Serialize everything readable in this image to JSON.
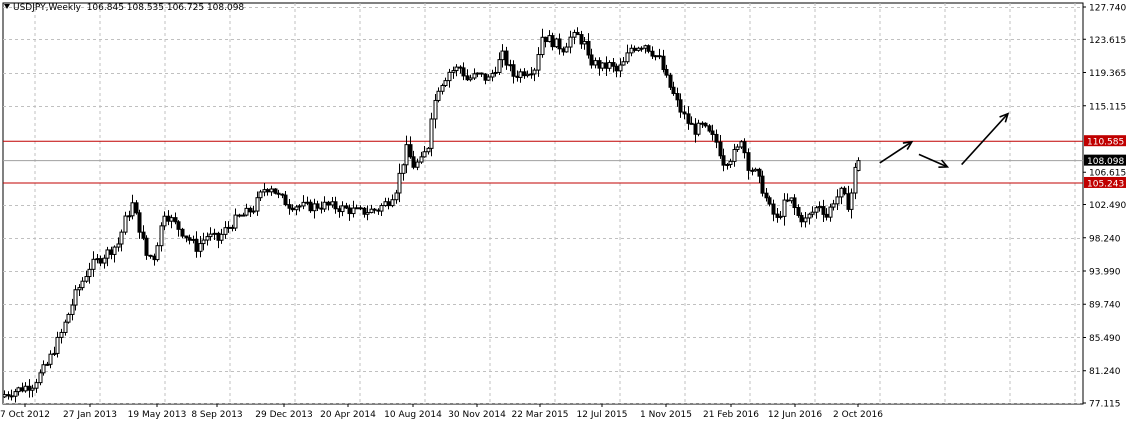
{
  "header": {
    "symbol": "USDJPY,Weekly",
    "ohlc": "106.845 108.535 106.725 108.098"
  },
  "chart_data": {
    "type": "candlestick",
    "title": "USDJPY,Weekly",
    "ylim": [
      77.115,
      127.74
    ],
    "y_ticks": [
      "127.740",
      "123.615",
      "119.365",
      "115.115",
      "110.585",
      "108.098",
      "106.615",
      "105.243",
      "102.490",
      "98.240",
      "93.990",
      "89.740",
      "85.490",
      "81.240",
      "77.115"
    ],
    "x_ticks": [
      "7 Oct 2012",
      "27 Jan 2013",
      "19 May 2013",
      "8 Sep 2013",
      "29 Dec 2013",
      "20 Apr 2014",
      "10 Aug 2014",
      "30 Nov 2014",
      "22 Mar 2015",
      "12 Jul 2015",
      "1 Nov 2015",
      "21 Feb 2016",
      "12 Jun 2016",
      "2 Oct 2016"
    ],
    "grid": true,
    "current_price": 108.098,
    "resistance_level": 110.585,
    "support_level": 105.243,
    "anchors": [
      [
        0,
        78.2
      ],
      [
        8,
        79.5
      ],
      [
        12,
        82.0
      ],
      [
        16,
        86.0
      ],
      [
        20,
        91.0
      ],
      [
        24,
        94.5
      ],
      [
        28,
        96.0
      ],
      [
        32,
        97.5
      ],
      [
        34,
        100.5
      ],
      [
        36,
        102.5
      ],
      [
        38,
        99.5
      ],
      [
        40,
        96.0
      ],
      [
        42,
        95.8
      ],
      [
        45,
        101.5
      ],
      [
        48,
        100.0
      ],
      [
        51,
        98.5
      ],
      [
        54,
        97.0
      ],
      [
        57,
        98.5
      ],
      [
        60,
        98.0
      ],
      [
        62,
        99.2
      ],
      [
        65,
        100.5
      ],
      [
        70,
        102.0
      ],
      [
        73,
        104.5
      ],
      [
        75,
        104.8
      ],
      [
        77,
        103.5
      ],
      [
        80,
        102.5
      ],
      [
        85,
        102.2
      ],
      [
        90,
        102.4
      ],
      [
        95,
        102.0
      ],
      [
        100,
        101.5
      ],
      [
        105,
        101.9
      ],
      [
        108,
        103.0
      ],
      [
        110,
        104.5
      ],
      [
        112,
        108.0
      ],
      [
        113,
        109.5
      ],
      [
        115,
        107.5
      ],
      [
        117,
        108.0
      ],
      [
        119,
        110.0
      ],
      [
        120,
        114.0
      ],
      [
        122,
        117.5
      ],
      [
        125,
        119.5
      ],
      [
        128,
        120.0
      ],
      [
        130,
        118.5
      ],
      [
        133,
        119.0
      ],
      [
        136,
        118.5
      ],
      [
        138,
        120.0
      ],
      [
        140,
        121.5
      ],
      [
        143,
        119.0
      ],
      [
        146,
        119.5
      ],
      [
        149,
        120.0
      ],
      [
        150,
        122.0
      ],
      [
        151,
        124.0
      ],
      [
        153,
        123.6
      ],
      [
        155,
        123.0
      ],
      [
        157,
        122.5
      ],
      [
        159,
        123.8
      ],
      [
        161,
        124.0
      ],
      [
        163,
        123.0
      ],
      [
        164,
        121.0
      ],
      [
        166,
        120.5
      ],
      [
        168,
        120.0
      ],
      [
        170,
        120.3
      ],
      [
        172,
        119.5
      ],
      [
        174,
        120.5
      ],
      [
        176,
        122.5
      ],
      [
        178,
        122.8
      ],
      [
        180,
        123.0
      ],
      [
        182,
        122.0
      ],
      [
        184,
        121.0
      ],
      [
        186,
        118.5
      ],
      [
        188,
        116.5
      ],
      [
        190,
        114.5
      ],
      [
        192,
        113.0
      ],
      [
        194,
        112.0
      ],
      [
        196,
        112.5
      ],
      [
        198,
        111.5
      ],
      [
        200,
        110.5
      ],
      [
        202,
        108.0
      ],
      [
        204,
        108.5
      ],
      [
        206,
        109.5
      ],
      [
        207,
        111.0
      ],
      [
        209,
        107.5
      ],
      [
        211,
        106.5
      ],
      [
        213,
        104.5
      ],
      [
        215,
        102.0
      ],
      [
        217,
        100.5
      ],
      [
        219,
        102.5
      ],
      [
        221,
        103.0
      ],
      [
        223,
        101.0
      ],
      [
        225,
        100.5
      ],
      [
        227,
        101.5
      ],
      [
        229,
        102.5
      ],
      [
        231,
        101.0
      ],
      [
        233,
        103.0
      ],
      [
        235,
        104.0
      ],
      [
        237,
        102.5
      ],
      [
        238,
        104.0
      ],
      [
        239,
        106.9
      ],
      [
        240,
        108.1
      ]
    ],
    "candles_total": 241,
    "forecast_arrows": [
      {
        "from": [
          246,
          107.8
        ],
        "to": [
          255,
          110.5
        ]
      },
      {
        "from": [
          257,
          108.9
        ],
        "to": [
          265,
          107.3
        ]
      },
      {
        "from": [
          269,
          107.6
        ],
        "to": [
          282,
          114.1
        ]
      }
    ],
    "colors": {
      "grid": "#c0c0c0",
      "candle": "#000000",
      "bull_fill": "#ffffff",
      "bear_fill": "#000000",
      "level_line": "#c00000",
      "level_label_bg": "#c00000",
      "level_label_text": "#ffffff",
      "price_label_bg": "#000000",
      "price_label_text": "#ffffff",
      "current_line": "#a0a0a0"
    }
  }
}
